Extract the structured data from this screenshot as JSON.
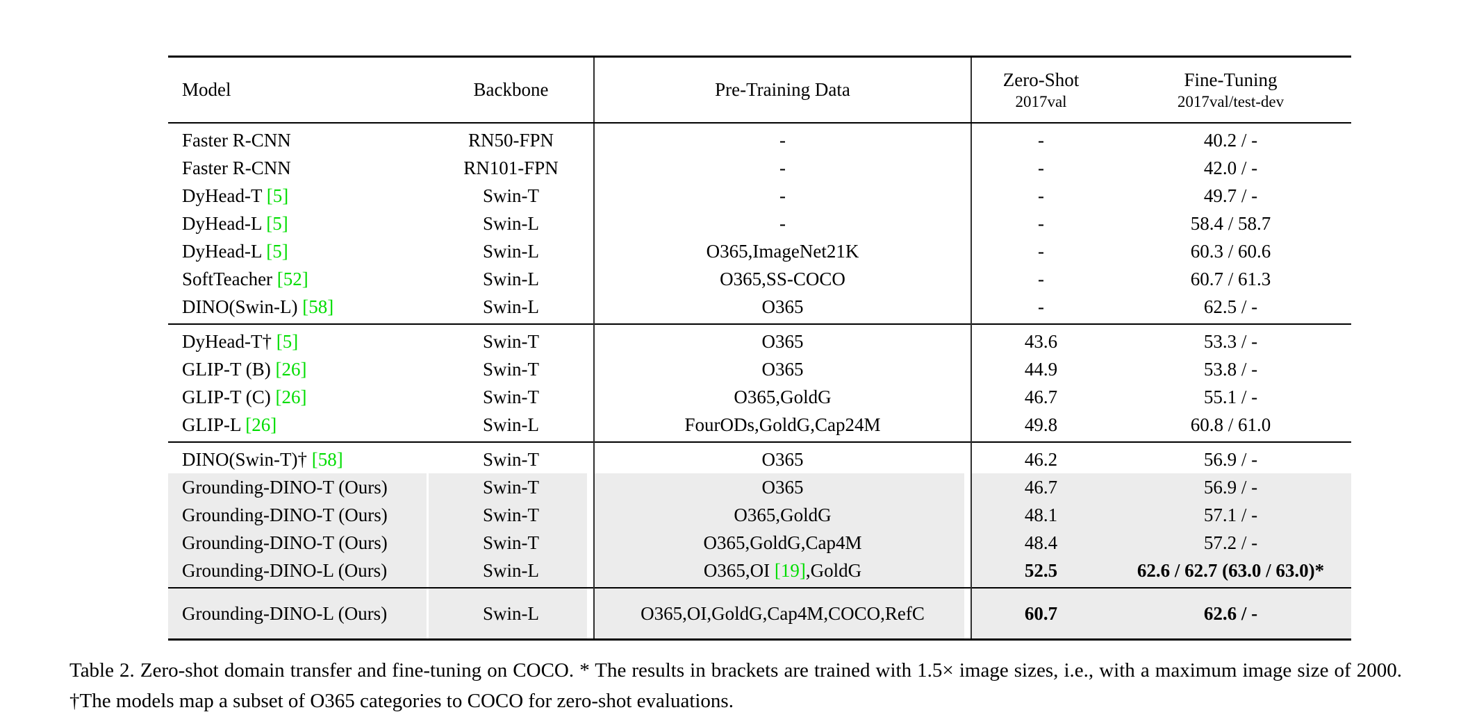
{
  "table": {
    "columns": [
      {
        "label": "Model"
      },
      {
        "label": "Backbone"
      },
      {
        "label": "Pre-Training Data"
      },
      {
        "label": "Zero-Shot",
        "sublabel": "2017val"
      },
      {
        "label": "Fine-Tuning",
        "sublabel": "2017val/test-dev"
      }
    ],
    "groups": [
      {
        "rows": [
          {
            "model": "Faster R-CNN",
            "backbone": "RN50-FPN",
            "pretraining": "-",
            "zero_shot": "-",
            "fine_tuning": "40.2 / -",
            "highlight": false
          },
          {
            "model": "Faster R-CNN",
            "backbone": "RN101-FPN",
            "pretraining": "-",
            "zero_shot": "-",
            "fine_tuning": "42.0 / -",
            "highlight": false
          },
          {
            "model": "DyHead-T [5]",
            "backbone": "Swin-T",
            "pretraining": "-",
            "zero_shot": "-",
            "fine_tuning": "49.7 / -",
            "highlight": false
          },
          {
            "model": "DyHead-L [5]",
            "backbone": "Swin-L",
            "pretraining": "-",
            "zero_shot": "-",
            "fine_tuning": "58.4 / 58.7",
            "highlight": false
          },
          {
            "model": "DyHead-L [5]",
            "backbone": "Swin-L",
            "pretraining": "O365,ImageNet21K",
            "zero_shot": "-",
            "fine_tuning": "60.3 / 60.6",
            "highlight": false
          },
          {
            "model": "SoftTeacher [52]",
            "backbone": "Swin-L",
            "pretraining": "O365,SS-COCO",
            "zero_shot": "-",
            "fine_tuning": "60.7 / 61.3",
            "highlight": false
          },
          {
            "model": "DINO(Swin-L) [58]",
            "backbone": "Swin-L",
            "pretraining": "O365",
            "zero_shot": "-",
            "fine_tuning": "62.5 / -",
            "highlight": false
          }
        ]
      },
      {
        "rows": [
          {
            "model": "DyHead-T† [5]",
            "backbone": "Swin-T",
            "pretraining": "O365",
            "zero_shot": "43.6",
            "fine_tuning": "53.3 / -",
            "highlight": false
          },
          {
            "model": "GLIP-T (B) [26]",
            "backbone": "Swin-T",
            "pretraining": "O365",
            "zero_shot": "44.9",
            "fine_tuning": "53.8 / -",
            "highlight": false
          },
          {
            "model": "GLIP-T (C) [26]",
            "backbone": "Swin-T",
            "pretraining": "O365,GoldG",
            "zero_shot": "46.7",
            "fine_tuning": "55.1 / -",
            "highlight": false
          },
          {
            "model": "GLIP-L [26]",
            "backbone": "Swin-L",
            "pretraining": "FourODs,GoldG,Cap24M",
            "zero_shot": "49.8",
            "fine_tuning": "60.8 / 61.0",
            "highlight": false
          }
        ]
      },
      {
        "rows": [
          {
            "model": "DINO(Swin-T)† [58]",
            "backbone": "Swin-T",
            "pretraining": "O365",
            "zero_shot": "46.2",
            "fine_tuning": "56.9 / -",
            "highlight": false
          },
          {
            "model": "Grounding-DINO-T (Ours)",
            "backbone": "Swin-T",
            "pretraining": "O365",
            "zero_shot": "46.7",
            "fine_tuning": "56.9 / -",
            "highlight": true
          },
          {
            "model": "Grounding-DINO-T (Ours)",
            "backbone": "Swin-T",
            "pretraining": "O365,GoldG",
            "zero_shot": "48.1",
            "fine_tuning": "57.1 / -",
            "highlight": true
          },
          {
            "model": "Grounding-DINO-T (Ours)",
            "backbone": "Swin-T",
            "pretraining": "O365,GoldG,Cap4M",
            "zero_shot": "48.4",
            "fine_tuning": "57.2 / -",
            "highlight": true
          },
          {
            "model": "Grounding-DINO-L (Ours)",
            "backbone": "Swin-L",
            "pretraining": "O365,OI [19],GoldG",
            "zero_shot": "52.5",
            "zero_shot_bold": true,
            "fine_tuning": "62.6 / 62.7 (63.0 / 63.0)*",
            "fine_tuning_bold": true,
            "highlight": true
          }
        ]
      },
      {
        "final": true,
        "rows": [
          {
            "model": "Grounding-DINO-L (Ours)",
            "backbone": "Swin-L",
            "pretraining": "O365,OI,GoldG,Cap4M,COCO,RefC",
            "zero_shot": "60.7",
            "zero_shot_bold": true,
            "fine_tuning": "62.6 / -",
            "fine_tuning_bold": true,
            "highlight": true
          }
        ]
      }
    ]
  },
  "caption": {
    "text": "Table 2.  Zero-shot domain transfer and fine-tuning on COCO. * The results in brackets are trained with 1.5× image sizes, i.e., with a maximum image size of 2000. †The models map a subset of O365 categories to COCO for zero-shot evaluations."
  },
  "colors": {
    "citation_green": "#00dd00",
    "row_highlight": "#ececec",
    "rule_black": "#000000"
  }
}
